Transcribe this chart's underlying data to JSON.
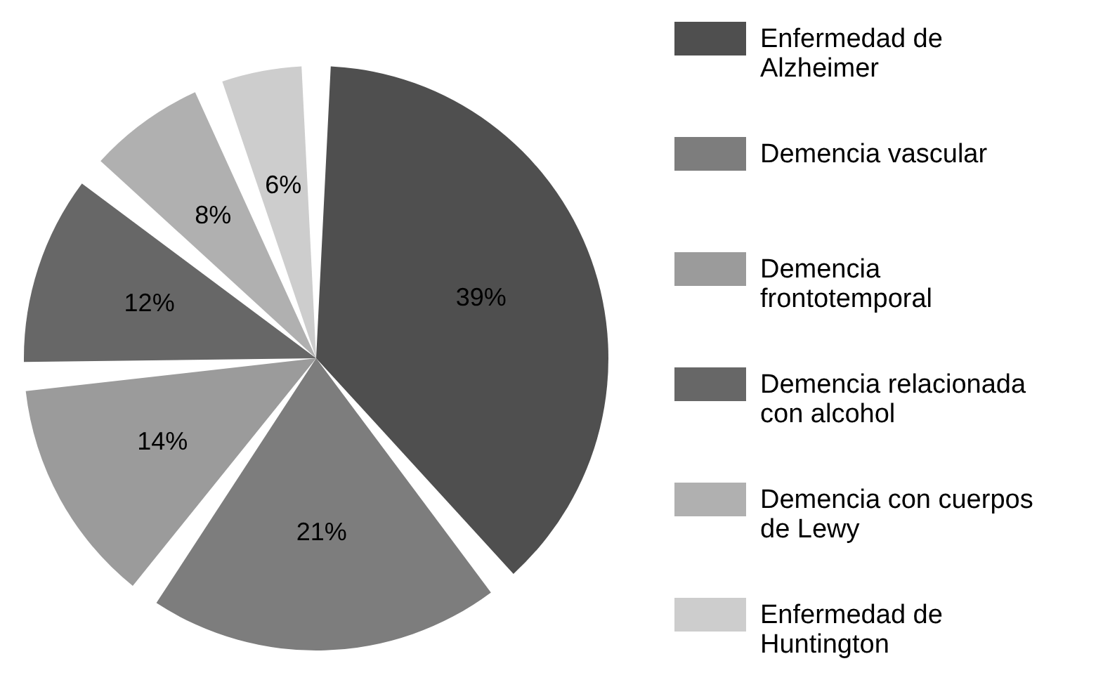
{
  "chart_data": {
    "type": "pie",
    "categories": [
      "Enfermedad de Alzheimer",
      "Demencia vascular",
      "Demencia frontotemporal",
      "Demencia relacionada con alcohol",
      "Demencia con cuerpos de Lewy",
      "Enfermedad de Huntington"
    ],
    "values": [
      39,
      21,
      14,
      12,
      8,
      6
    ],
    "colors": [
      "#4f4f4f",
      "#7d7d7d",
      "#9b9b9b",
      "#676767",
      "#b0b0b0",
      "#cdcdcd"
    ],
    "value_labels": [
      "39%",
      "21%",
      "14%",
      "12%",
      "8%",
      "6%"
    ],
    "legend": "right"
  }
}
